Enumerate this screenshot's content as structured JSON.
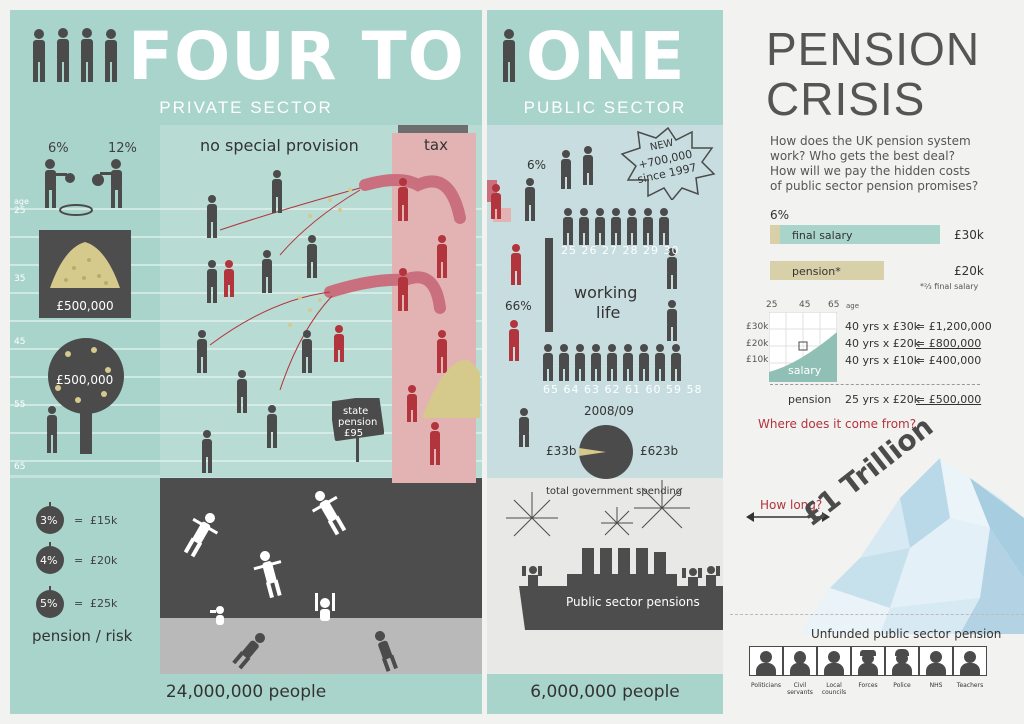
{
  "title": {
    "left": "FOUR TO",
    "right": "ONE"
  },
  "private": {
    "header": "PRIVATE SECTOR",
    "contrib": [
      "6%",
      "12%"
    ],
    "age_label": "age",
    "ages": [
      "25",
      "35",
      "45",
      "55",
      "65"
    ],
    "pot1": "£500,000",
    "pot2": "£500,000",
    "rates": [
      {
        "pct": "3%",
        "eq": "=",
        "amt": "£15k"
      },
      {
        "pct": "4%",
        "eq": "=",
        "amt": "£20k"
      },
      {
        "pct": "5%",
        "eq": "=",
        "amt": "£25k"
      }
    ],
    "risk_label": "pension / risk",
    "provision": "no special provision",
    "tax": "tax",
    "state_pension_sign": [
      "state",
      "pension",
      "£95"
    ],
    "people": "24,000,000 people"
  },
  "public": {
    "header": "PUBLIC SECTOR",
    "new_badge": [
      "NEW",
      "+700,000",
      "since 1997"
    ],
    "contrib_top": "6%",
    "contrib_mid": "66%",
    "ages_top": [
      "25",
      "26",
      "27",
      "28",
      "29",
      "30"
    ],
    "ages_bottom": [
      "65",
      "64",
      "63",
      "62",
      "61",
      "60",
      "59",
      "58"
    ],
    "working_life": [
      "working",
      "life"
    ],
    "year": "2008/09",
    "spend_small": "£33b",
    "spend_big": "£623b",
    "spend_caption": "total government spending",
    "ship_label": "Public sector pensions",
    "people": "6,000,000 people"
  },
  "crisis": {
    "title_lines": [
      "PENSION",
      "CRISIS"
    ],
    "intro_lines": [
      "How does the UK pension system",
      "work? Who gets the best deal?",
      "How will we pay the hidden costs",
      "of public sector pension promises?"
    ],
    "bar_pct": "6%",
    "bar1_label": "final salary",
    "bar1_value": "£30k",
    "bar2_label": "pension*",
    "bar2_value": "£20k",
    "footnote": "*²⁄₃ final salary",
    "chart_ages": [
      "25",
      "45",
      "65",
      "age"
    ],
    "chart_y": [
      "£30k",
      "£20k",
      "£10k"
    ],
    "salary_label": "salary",
    "calc": [
      {
        "lhs": "40 yrs x £30k",
        "rhs": "= £1,200,000"
      },
      {
        "lhs": "40 yrs x £20k",
        "rhs": "= £800,000"
      },
      {
        "lhs": "40 yrs x £10k",
        "rhs": "= £400,000"
      }
    ],
    "pension_row": {
      "label": "pension",
      "lhs": "25 yrs x £20k",
      "rhs": "= £500,000"
    },
    "question": "Where does it come from?",
    "how_long": "How long?",
    "trillion": "£1 Trillion",
    "unfunded": "Unfunded public sector pension",
    "groups": [
      "Politicians",
      "Civil servants",
      "Local councils",
      "Forces",
      "Police",
      "NHS",
      "Teachers"
    ]
  },
  "colors": {
    "teal": "#a9d4cc",
    "teal_light": "#c7e2dc",
    "dark": "#4b4b4b",
    "tax_pink": "#e3b3b4",
    "red": "#b2343c",
    "gold": "#d6c98c",
    "beige": "#d8d0a8"
  }
}
